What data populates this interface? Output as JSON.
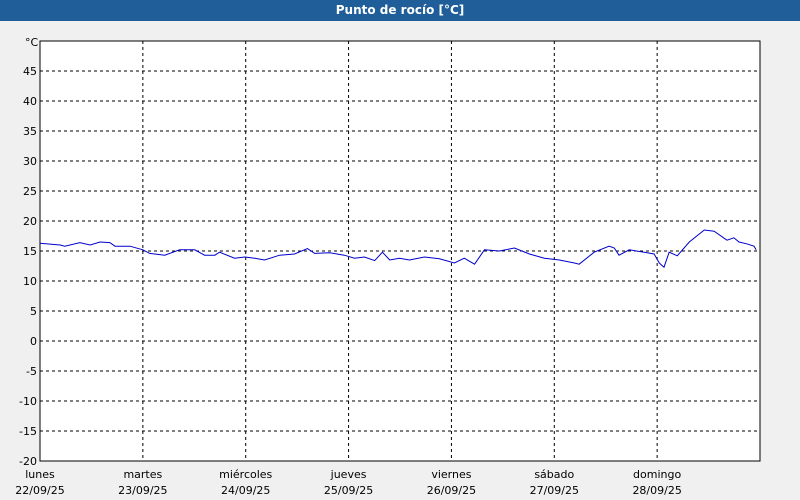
{
  "chart_data": {
    "type": "line",
    "title": "Punto de rocío [°C]",
    "y_label": "°C",
    "x": [
      0,
      4.7,
      5.8,
      9.3,
      11.7,
      14,
      16.3,
      17.5,
      21,
      24,
      25.6,
      29.1,
      32.6,
      36.1,
      38.4,
      40.8,
      41.9,
      45.4,
      47.8,
      50.1,
      52.4,
      55.9,
      59.4,
      62.4,
      64.1,
      67.6,
      71,
      73.4,
      75.7,
      78.1,
      79.9,
      81.6,
      83.9,
      86.2,
      89.7,
      93.2,
      96.7,
      99,
      101.4,
      103.7,
      107.2,
      110.7,
      114.2,
      117.7,
      121.2,
      124.7,
      125.8,
      129.3,
      132.8,
      134,
      135.1,
      137.5,
      141,
      143.3,
      144.5,
      145.6,
      146.8,
      148.7,
      151.5,
      155,
      157.3,
      160.3,
      161.9,
      163.1,
      164.9,
      166.6,
      167.1
    ],
    "series": [
      {
        "color": "#0000cc",
        "values": [
          16.3,
          16,
          15.8,
          16.4,
          16,
          16.5,
          16.4,
          15.8,
          15.8,
          15.2,
          14.6,
          14.3,
          15.2,
          15.2,
          14.3,
          14.3,
          14.8,
          13.8,
          14,
          13.8,
          13.5,
          14.3,
          14.5,
          15.4,
          14.6,
          14.7,
          14.3,
          13.8,
          14,
          13.4,
          14.8,
          13.5,
          13.8,
          13.5,
          14,
          13.7,
          13,
          13.8,
          12.8,
          15.2,
          15,
          15.5,
          14.5,
          13.8,
          13.5,
          13,
          12.8,
          14.8,
          15.8,
          15.5,
          14.3,
          15.2,
          14.8,
          14.5,
          13,
          12.3,
          14.8,
          14.2,
          16.5,
          18.5,
          18.3,
          16.8,
          17.2,
          16.5,
          16.2,
          15.8,
          15.2
        ]
      }
    ],
    "xlim": [
      0,
      168
    ],
    "xticks": [
      {
        "value": 0,
        "label": "lunes",
        "date": "22/09/25"
      },
      {
        "value": 24,
        "label": "martes",
        "date": "23/09/25"
      },
      {
        "value": 48,
        "label": "miércoles",
        "date": "24/09/25"
      },
      {
        "value": 72,
        "label": "jueves",
        "date": "25/09/25"
      },
      {
        "value": 96,
        "label": "viernes",
        "date": "26/09/25"
      },
      {
        "value": 120,
        "label": "sábado",
        "date": "27/09/25"
      },
      {
        "value": 144,
        "label": "domingo",
        "date": "28/09/25"
      }
    ],
    "ylim": [
      -20,
      50
    ],
    "yticks": [
      -20,
      -15,
      -10,
      -5,
      0,
      5,
      10,
      15,
      20,
      25,
      30,
      35,
      40,
      45
    ],
    "grid": true
  }
}
